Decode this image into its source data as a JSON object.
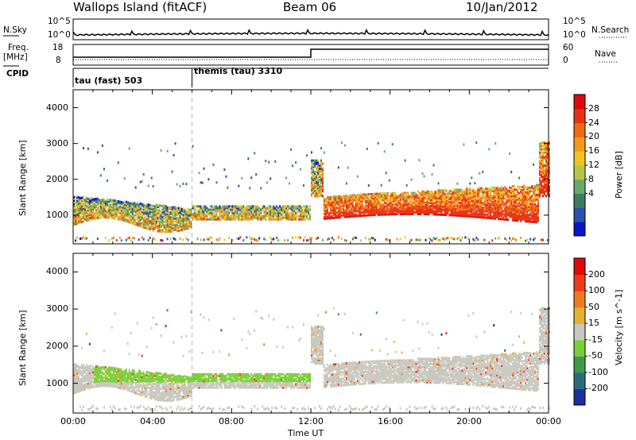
{
  "header": {
    "station": "Wallops Island (fitACF)",
    "beam": "Beam 06",
    "date": "10/Jan/2012"
  },
  "strip_labels": {
    "nsky": "N.Sky",
    "nsearch": "N.Search",
    "freq": "Freq.",
    "freq_unit": "[MHz]",
    "nave": "Nave",
    "cpid": "CPID",
    "nsky_ticks": [
      "10^5",
      "10^0"
    ],
    "nsearch_ticks": [
      "10^5",
      "10^0"
    ],
    "freq_ticks": [
      "18",
      "8"
    ],
    "nave_ticks": [
      "60",
      "0"
    ]
  },
  "cpid": [
    {
      "label": "tau (fast) 503",
      "start": "00:00"
    },
    {
      "label": "themis (tau) 3310",
      "start": "06:00"
    }
  ],
  "chart_data": [
    {
      "type": "heatmap",
      "name": "power",
      "ylabel": "Slant Range [km]",
      "xlabel": "Time UT",
      "ylim": [
        200,
        4500
      ],
      "yticks": [
        "1000",
        "2000",
        "3000",
        "4000"
      ],
      "xticks": [
        "00:00",
        "04:00",
        "08:00",
        "12:00",
        "16:00",
        "20:00",
        "00:00"
      ],
      "colorbar_label": "Power [dB]",
      "colorbar_ticks": [
        "28",
        "24",
        "20",
        "16",
        "12",
        "8",
        "4"
      ],
      "colors": [
        "#0a14c8",
        "#2a52a8",
        "#3d7d5f",
        "#6aa86a",
        "#b4c74a",
        "#f0c31e",
        "#f5991e",
        "#f06a14",
        "#e83212",
        "#dd0a0a"
      ]
    },
    {
      "type": "heatmap",
      "name": "velocity",
      "ylabel": "Velocity [m s^-1]",
      "yaxis": "Slant Range [km]",
      "xlabel": "Time UT",
      "ylim": [
        200,
        4500
      ],
      "yticks": [
        "1000",
        "2000",
        "3000",
        "4000"
      ],
      "xticks": [
        "00:00",
        "04:00",
        "08:00",
        "12:00",
        "16:00",
        "20:00",
        "00:00"
      ],
      "colorbar_label": "Velocity [m s^-1]",
      "colorbar_ticks": [
        "200",
        "100",
        "50",
        "15",
        "-15",
        "-50",
        "-100",
        "-200"
      ],
      "colors": [
        "#1f2e9e",
        "#2b6b80",
        "#3f9a4a",
        "#7ad03a",
        "#c8c8c0",
        "#e8b030",
        "#f07a20",
        "#ee3a18",
        "#e00808"
      ]
    }
  ],
  "xaxis_title": "Time UT"
}
